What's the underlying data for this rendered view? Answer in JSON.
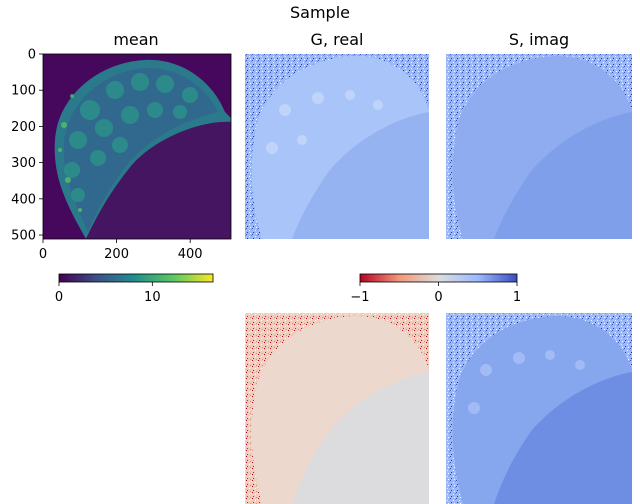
{
  "figure": {
    "suptitle": "Sample"
  },
  "chart_data": [
    {
      "type": "heatmap",
      "title": "mean",
      "xlim": [
        0,
        511
      ],
      "ylim": [
        511,
        0
      ],
      "x_ticks": [
        0,
        200,
        400
      ],
      "y_ticks": [
        0,
        100,
        200,
        300,
        400,
        500
      ],
      "x_tick_labels": [
        "0",
        "200",
        "400"
      ],
      "y_tick_labels": [
        "0",
        "100",
        "200",
        "300",
        "400",
        "500"
      ],
      "colormap": "viridis",
      "colorbar": {
        "range": [
          0,
          16.5
        ],
        "ticks": [
          0,
          10
        ],
        "tick_labels": [
          "0",
          "10"
        ]
      }
    },
    {
      "type": "heatmap",
      "title": "G, real",
      "colormap": "coolwarm_r",
      "range": [
        -1,
        1
      ]
    },
    {
      "type": "heatmap",
      "title": "S, imag",
      "colormap": "coolwarm_r",
      "range": [
        -1,
        1
      ]
    },
    {
      "type": "heatmap",
      "title": "",
      "colormap": "coolwarm_r",
      "range": [
        -1,
        1
      ],
      "note_row": "bottom-left"
    },
    {
      "type": "heatmap",
      "title": "",
      "colormap": "coolwarm_r",
      "range": [
        -1,
        1
      ],
      "note_row": "bottom-right"
    },
    {
      "type": "colorbar",
      "colormap": "coolwarm_r",
      "range": [
        -1,
        1
      ],
      "ticks": [
        -1,
        0,
        1
      ],
      "tick_labels": [
        "−1",
        "0",
        "1"
      ]
    }
  ]
}
